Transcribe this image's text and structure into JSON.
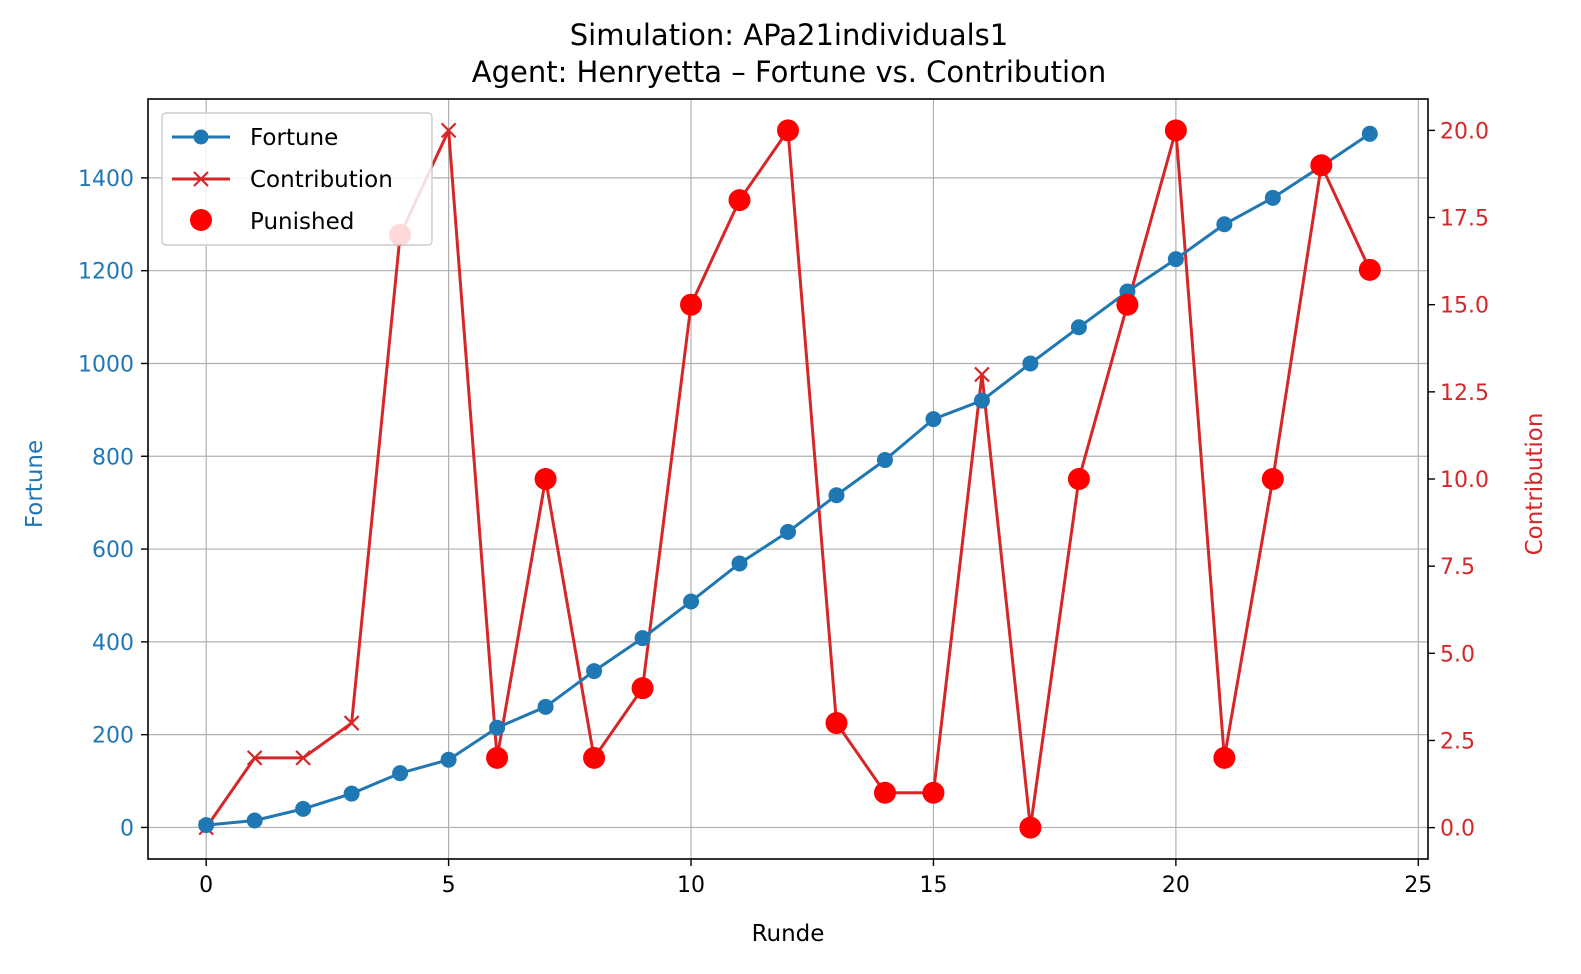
{
  "chart_data": {
    "type": "line",
    "title": "Simulation: APa21individuals1",
    "subtitle": "Agent: Henryetta – Fortune vs. Contribution",
    "xlabel": "Runde",
    "ylabel_left": "Fortune",
    "ylabel_right": "Contribution",
    "xlim": [
      -1.2,
      25.2
    ],
    "ylim_left": [
      -68,
      1570
    ],
    "ylim_right": [
      -0.9,
      20.9
    ],
    "xticks": [
      0,
      5,
      10,
      15,
      20,
      25
    ],
    "xtick_labels": [
      "0",
      "5",
      "10",
      "15",
      "20",
      "25"
    ],
    "yticks_left": [
      0,
      200,
      400,
      600,
      800,
      1000,
      1200,
      1400
    ],
    "ytick_labels_left": [
      "0",
      "200",
      "400",
      "600",
      "800",
      "1000",
      "1200",
      "1400"
    ],
    "yticks_right": [
      0,
      2.5,
      5,
      7.5,
      10,
      12.5,
      15,
      17.5,
      20
    ],
    "ytick_labels_right": [
      "0.0",
      "2.5",
      "5.0",
      "7.5",
      "10.0",
      "12.5",
      "15.0",
      "17.5",
      "20.0"
    ],
    "grid": true,
    "legend_position": "top-left",
    "legend": [
      "Fortune",
      "Contribution",
      "Punished"
    ],
    "colors": {
      "fortune": "#1f77b4",
      "contribution": "#d62728",
      "punished": "#ff0000"
    },
    "series": [
      {
        "name": "Fortune",
        "axis": "left",
        "x": [
          0,
          1,
          2,
          3,
          4,
          5,
          6,
          7,
          8,
          9,
          10,
          11,
          12,
          13,
          14,
          15,
          16,
          17,
          18,
          19,
          20,
          21,
          22,
          23,
          24
        ],
        "values": [
          5,
          15,
          40,
          73,
          117,
          146,
          215,
          260,
          337,
          408,
          487,
          569,
          637,
          716,
          792,
          880,
          920,
          1000,
          1078,
          1155,
          1225,
          1300,
          1357,
          1425,
          1495
        ]
      },
      {
        "name": "Contribution",
        "axis": "right",
        "x": [
          0,
          1,
          2,
          3,
          4,
          5,
          6,
          7,
          8,
          9,
          10,
          11,
          12,
          13,
          14,
          15,
          16,
          17,
          18,
          19,
          20,
          21,
          22,
          23,
          24
        ],
        "values": [
          0,
          2,
          2,
          3,
          17,
          20,
          2,
          10,
          2,
          4,
          15,
          18,
          20,
          3,
          1,
          1,
          13,
          0,
          10,
          15,
          20,
          2,
          10,
          19,
          16
        ]
      },
      {
        "name": "Punished",
        "axis": "right",
        "x": [
          4,
          6,
          7,
          8,
          9,
          10,
          11,
          12,
          13,
          14,
          15,
          17,
          18,
          19,
          20,
          21,
          22,
          23,
          24
        ],
        "values": [
          17,
          2,
          10,
          2,
          4,
          15,
          18,
          20,
          3,
          1,
          1,
          0,
          10,
          15,
          20,
          2,
          10,
          19,
          16
        ]
      }
    ]
  }
}
